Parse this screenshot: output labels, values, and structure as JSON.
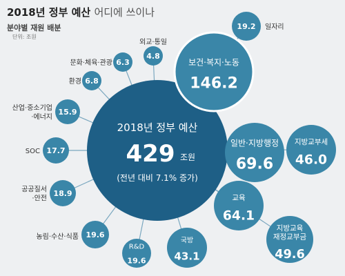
{
  "header": {
    "title_bold": "2018년 정부 예산",
    "title_light": "어디에 쓰이나",
    "subtitle": "분야별 재원 배분",
    "unit": "단위: 조원"
  },
  "center": {
    "line1": "2018년 정부 예산",
    "amount": "429",
    "amount_unit": "조원",
    "note": "(전년 대비 7.1% 증가)"
  },
  "nodes": [
    {
      "id": "culture",
      "label": "문화·체육·관광",
      "value": "6.3"
    },
    {
      "id": "diplomacy",
      "label": "외교·통일",
      "value": "4.8"
    },
    {
      "id": "environment",
      "label": "환경",
      "value": "6.8"
    },
    {
      "id": "industry",
      "label": "산업·중소기업·에너지",
      "value": "15.9"
    },
    {
      "id": "soc",
      "label": "SOC",
      "value": "17.7"
    },
    {
      "id": "public-order",
      "label": "공공질서·안전",
      "value": "18.9"
    },
    {
      "id": "agriculture",
      "label": "농림·수산·식품",
      "value": "19.6"
    },
    {
      "id": "rnd",
      "label": "R&D",
      "value": "19.6"
    },
    {
      "id": "defense",
      "label": "국방",
      "value": "43.1"
    },
    {
      "id": "education",
      "label": "교육",
      "value": "64.1"
    },
    {
      "id": "local-edu",
      "label": "지방교육재정교부금",
      "value": "49.6"
    },
    {
      "id": "local-tax",
      "label": "지방교부세",
      "value": "46.0"
    },
    {
      "id": "admin",
      "label": "일반·지방행정",
      "value": "69.6"
    },
    {
      "id": "welfare",
      "label": "보건·복지·노동",
      "value": "146.2"
    },
    {
      "id": "jobs",
      "label": "일자리",
      "value": "19.2"
    }
  ],
  "colors": {
    "center": "#1e5f86",
    "bubble": "#3a86a8",
    "line": "#7aa7bf"
  }
}
